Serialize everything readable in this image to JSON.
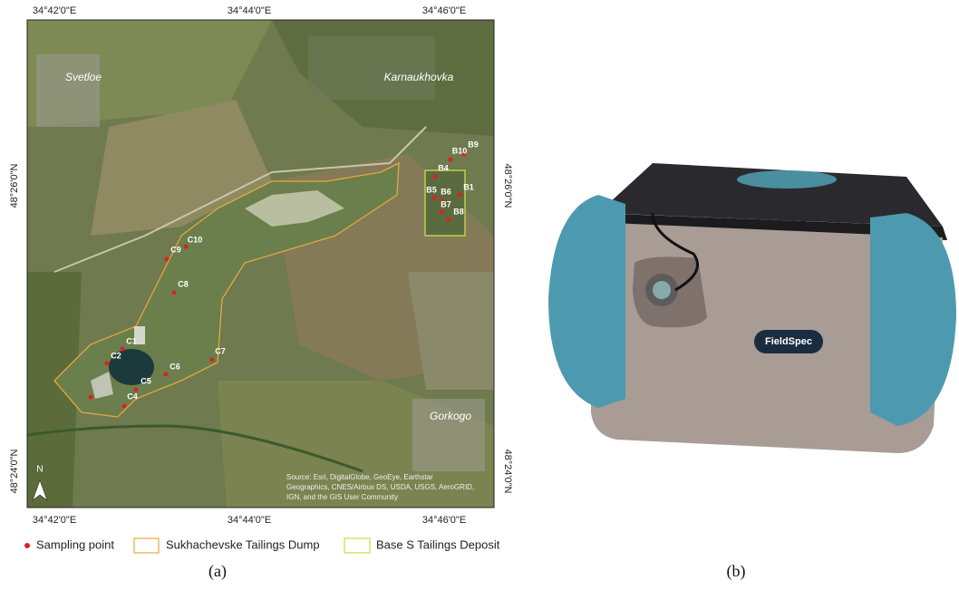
{
  "map": {
    "top_coordinates": [
      "34°42'0\"E",
      "34°44'0\"E",
      "34°46'0\"E"
    ],
    "bottom_coordinates": [
      "34°42'0\"E",
      "34°44'0\"E",
      "34°46'0\"E"
    ],
    "left_coordinates": [
      "48°26'0\"N",
      "48°24'0\"N"
    ],
    "right_coordinates": [
      "48°26'0\"N",
      "48°24'0\"N"
    ],
    "places": [
      "Svetloe",
      "Karnaukhovka",
      "Gorkogo"
    ],
    "sampling_points": [
      "B10",
      "B9",
      "B4",
      "B1",
      "B5",
      "B6",
      "B7",
      "B8",
      "C10",
      "C9",
      "C8",
      "C1",
      "C2",
      "C7",
      "C6",
      "C5",
      "C4"
    ],
    "north": "N",
    "source": [
      "Source: Esri, DigitalGlobe, GeoEye, Earthstar",
      "Geographics, CNES/Airbus DS, USDA, USGS, AeroGRID,",
      "IGN, and the GIS User Community"
    ]
  },
  "legend": [
    "Sampling point",
    "Sukhachevske Tailings Dump",
    "Base S Tailings Deposit"
  ],
  "device": {
    "label": "FieldSpec"
  },
  "captions": [
    "(a)",
    "(b)"
  ]
}
